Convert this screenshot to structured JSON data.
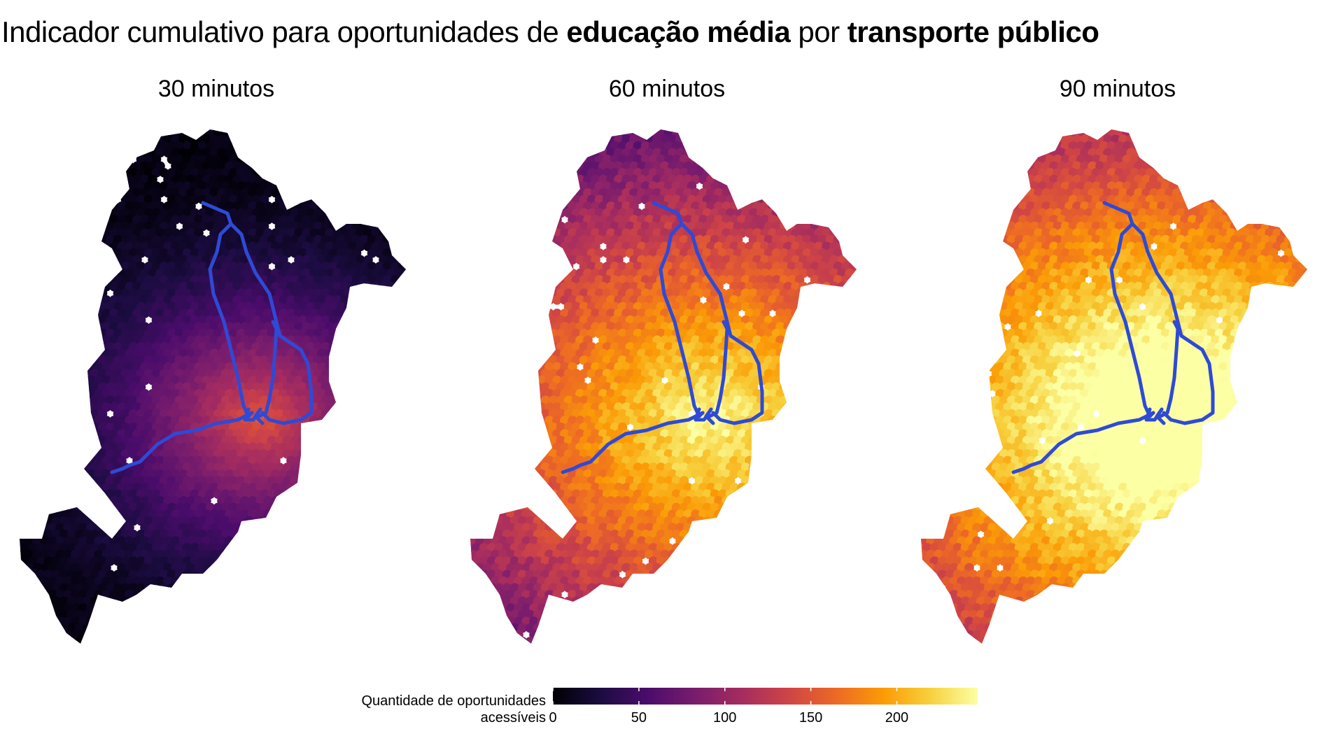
{
  "title": {
    "part1": "Indicador cumulativo para oportunidades de ",
    "bold1": "educação média",
    "part2": " por ",
    "bold2": "transporte público"
  },
  "panels": [
    {
      "label": "30 minutos",
      "level": 0.12
    },
    {
      "label": "60 minutos",
      "level": 0.55
    },
    {
      "label": "90 minutos",
      "level": 0.92
    }
  ],
  "legend": {
    "title_line1": "Quantidade de oportunidades",
    "title_line2": "acessíveis",
    "ticks": [
      "0",
      "50",
      "100",
      "150",
      "200"
    ],
    "tick_values": [
      0,
      50,
      100,
      150,
      200
    ],
    "range": [
      0,
      247
    ]
  },
  "colors": {
    "palette": [
      "#000004",
      "#1b0c41",
      "#4a0c6b",
      "#781c6d",
      "#a52c60",
      "#cf4446",
      "#ed6925",
      "#fb9b06",
      "#f7d13d",
      "#fcffa4"
    ],
    "rail": "#2e4ad6"
  }
}
